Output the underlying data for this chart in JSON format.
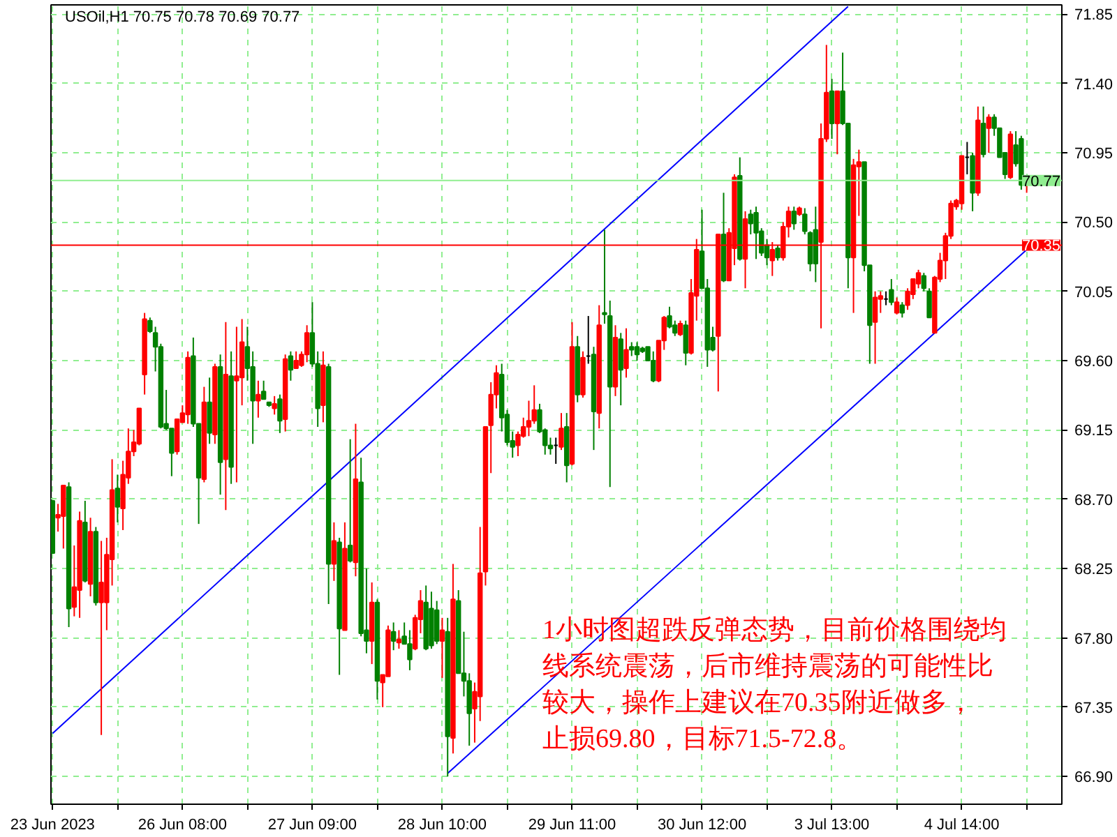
{
  "chart_data": {
    "type": "candlestick",
    "title": "USOil,H1 70.75 70.78 70.69 70.77",
    "categories": [
      "23 Jun 2023",
      null,
      null,
      null,
      null,
      null,
      null,
      null,
      null,
      null,
      null,
      null,
      null,
      null,
      null,
      null,
      null,
      null,
      null,
      null,
      null,
      null,
      null,
      null,
      "26 Jun 08:00",
      null,
      null,
      null,
      null,
      null,
      null,
      null,
      null,
      null,
      null,
      null,
      null,
      null,
      null,
      null,
      null,
      null,
      null,
      null,
      null,
      null,
      null,
      null,
      "27 Jun 09:00",
      null,
      null,
      null,
      null,
      null,
      null,
      null,
      null,
      null,
      null,
      null,
      null,
      null,
      null,
      null,
      null,
      null,
      null,
      null,
      null,
      null,
      null,
      null,
      "28 Jun 10:00",
      null,
      null,
      null,
      null,
      null,
      null,
      null,
      null,
      null,
      null,
      null,
      null,
      null,
      null,
      null,
      null,
      null,
      null,
      null,
      null,
      null,
      null,
      null,
      "29 Jun 11:00",
      null,
      null,
      null,
      null,
      null,
      null,
      null,
      null,
      null,
      null,
      null,
      null,
      null,
      null,
      null,
      null,
      null,
      null,
      null,
      null,
      null,
      null,
      null,
      "30 Jun 12:00",
      null,
      null,
      null,
      null,
      null,
      null,
      null,
      null,
      null,
      null,
      null,
      null,
      null,
      null,
      null,
      null,
      null,
      null,
      null,
      null,
      null,
      null,
      null,
      "3 Jul 13:00",
      null,
      null,
      null,
      null,
      null,
      null,
      null,
      null,
      null,
      null,
      null,
      null,
      null,
      null,
      null,
      null,
      null,
      null,
      null,
      null,
      null,
      null,
      null,
      "4 Jul 14:00",
      null,
      null,
      null,
      null,
      null,
      null,
      null,
      null,
      null,
      null,
      null,
      null
    ],
    "ohlc": [
      [
        68.69,
        68.69,
        68.35,
        68.35
      ],
      [
        68.58,
        68.67,
        68.49,
        68.6
      ],
      [
        68.59,
        68.79,
        68.38,
        68.79
      ],
      [
        68.78,
        68.81,
        67.87,
        67.99
      ],
      [
        68.0,
        68.4,
        67.94,
        68.13
      ],
      [
        68.11,
        68.62,
        67.93,
        68.56
      ],
      [
        68.55,
        68.69,
        68.16,
        68.17
      ],
      [
        68.15,
        68.58,
        68.07,
        68.49
      ],
      [
        68.49,
        68.52,
        68.01,
        68.03
      ],
      [
        68.03,
        68.43,
        67.17,
        68.16
      ],
      [
        68.03,
        68.45,
        67.85,
        68.34
      ],
      [
        68.31,
        68.96,
        68.14,
        68.76
      ],
      [
        68.77,
        68.86,
        68.55,
        68.65
      ],
      [
        68.64,
        68.95,
        68.5,
        68.86
      ],
      [
        68.84,
        69.16,
        68.8,
        69.01
      ],
      [
        69.01,
        69.15,
        68.98,
        69.07
      ],
      [
        69.06,
        69.29,
        69.05,
        69.29
      ],
      [
        69.51,
        69.91,
        69.38,
        69.87
      ],
      [
        69.86,
        69.88,
        69.78,
        69.79
      ],
      [
        69.78,
        69.82,
        69.53,
        69.69
      ],
      [
        69.69,
        69.71,
        69.16,
        69.17
      ],
      [
        69.19,
        69.41,
        69.15,
        69.16
      ],
      [
        69.16,
        69.16,
        68.85,
        69.0
      ],
      [
        69.01,
        69.22,
        68.99,
        69.22
      ],
      [
        69.2,
        69.31,
        69.2,
        69.26
      ],
      [
        69.25,
        69.66,
        69.19,
        69.62
      ],
      [
        69.63,
        69.75,
        69.17,
        69.19
      ],
      [
        69.19,
        69.19,
        68.54,
        68.84
      ],
      [
        68.83,
        69.43,
        68.81,
        69.33
      ],
      [
        69.33,
        69.49,
        69.06,
        69.13
      ],
      [
        69.12,
        69.58,
        69.06,
        69.56
      ],
      [
        69.56,
        69.64,
        68.73,
        68.94
      ],
      [
        68.96,
        69.85,
        68.63,
        69.51
      ],
      [
        69.5,
        69.66,
        68.8,
        68.91
      ],
      [
        69.47,
        69.82,
        68.81,
        69.5
      ],
      [
        69.49,
        69.87,
        69.31,
        69.72
      ],
      [
        69.69,
        69.82,
        69.47,
        69.55
      ],
      [
        69.56,
        69.66,
        69.06,
        69.34
      ],
      [
        69.34,
        69.47,
        69.23,
        69.38
      ],
      [
        69.4,
        69.47,
        69.35,
        69.35
      ],
      [
        69.33,
        69.33,
        69.3,
        69.31
      ],
      [
        69.29,
        69.37,
        69.25,
        69.32
      ],
      [
        69.35,
        69.38,
        69.13,
        69.21
      ],
      [
        69.22,
        69.64,
        69.14,
        69.61
      ],
      [
        69.63,
        69.66,
        69.47,
        69.54
      ],
      [
        69.55,
        69.66,
        69.55,
        69.6
      ],
      [
        69.57,
        69.66,
        69.56,
        69.64
      ],
      [
        69.64,
        69.83,
        69.59,
        69.78
      ],
      [
        69.78,
        69.98,
        69.56,
        69.58
      ],
      [
        69.58,
        69.66,
        69.17,
        69.29
      ],
      [
        69.31,
        69.66,
        69.2,
        69.57
      ],
      [
        69.56,
        69.58,
        68.02,
        68.28
      ],
      [
        68.28,
        68.55,
        68.17,
        68.43
      ],
      [
        68.42,
        68.45,
        67.56,
        67.86
      ],
      [
        67.85,
        68.55,
        67.85,
        68.38
      ],
      [
        68.4,
        69.09,
        68.29,
        68.3
      ],
      [
        68.29,
        69.19,
        68.2,
        68.83
      ],
      [
        68.81,
        68.97,
        67.81,
        67.83
      ],
      [
        67.85,
        68.25,
        67.7,
        67.78
      ],
      [
        67.78,
        68.16,
        67.63,
        68.03
      ],
      [
        68.03,
        68.05,
        67.4,
        67.52
      ],
      [
        67.51,
        67.56,
        67.35,
        67.56
      ],
      [
        67.55,
        67.88,
        67.55,
        67.85
      ],
      [
        67.84,
        67.9,
        67.72,
        67.78
      ],
      [
        67.77,
        67.85,
        67.73,
        67.79
      ],
      [
        67.81,
        67.9,
        67.76,
        67.76
      ],
      [
        67.76,
        67.85,
        67.59,
        67.66
      ],
      [
        67.73,
        67.95,
        67.72,
        67.93
      ],
      [
        67.92,
        68.11,
        67.83,
        68.04
      ],
      [
        68.03,
        68.14,
        67.72,
        67.73
      ],
      [
        67.99,
        68.1,
        67.73,
        67.75
      ],
      [
        67.98,
        68.04,
        67.76,
        67.78
      ],
      [
        67.78,
        67.93,
        67.54,
        67.85
      ],
      [
        67.84,
        67.93,
        66.9,
        67.16
      ],
      [
        67.15,
        68.28,
        67.05,
        68.05
      ],
      [
        68.04,
        68.11,
        67.57,
        67.57
      ],
      [
        67.57,
        67.84,
        67.42,
        67.52
      ],
      [
        67.52,
        67.57,
        67.1,
        67.31
      ],
      [
        67.34,
        67.51,
        67.12,
        67.45
      ],
      [
        67.42,
        68.52,
        67.26,
        68.22
      ],
      [
        68.23,
        69.17,
        68.14,
        69.17
      ],
      [
        69.18,
        69.46,
        68.87,
        69.38
      ],
      [
        69.38,
        69.57,
        69.29,
        69.52
      ],
      [
        69.51,
        69.58,
        69.14,
        69.23
      ],
      [
        69.25,
        69.28,
        69.05,
        69.07
      ],
      [
        69.08,
        69.14,
        68.97,
        69.04
      ],
      [
        69.05,
        69.14,
        68.98,
        69.12
      ],
      [
        69.11,
        69.23,
        69.1,
        69.17
      ],
      [
        69.17,
        69.34,
        69.11,
        69.21
      ],
      [
        69.21,
        69.44,
        69.19,
        69.28
      ],
      [
        69.28,
        69.32,
        69.13,
        69.14
      ],
      [
        69.15,
        69.16,
        68.99,
        69.05
      ],
      [
        69.05,
        69.1,
        68.99,
        69.03
      ],
      [
        69.05,
        69.1,
        68.93,
        69.05
      ],
      [
        69.04,
        69.26,
        69.02,
        69.16
      ],
      [
        69.17,
        69.26,
        68.81,
        68.92
      ],
      [
        68.93,
        69.85,
        68.92,
        69.69
      ],
      [
        69.69,
        69.76,
        69.33,
        69.38
      ],
      [
        69.38,
        69.66,
        69.36,
        69.62
      ],
      [
        69.63,
        69.89,
        69.58,
        69.63
      ],
      [
        69.64,
        69.69,
        69.02,
        69.27
      ],
      [
        69.26,
        69.96,
        69.16,
        69.83
      ],
      [
        69.91,
        70.45,
        69.84,
        69.9
      ],
      [
        69.89,
        69.99,
        68.78,
        69.43
      ],
      [
        69.43,
        69.83,
        69.37,
        69.75
      ],
      [
        69.74,
        69.78,
        69.31,
        69.54
      ],
      [
        69.55,
        69.81,
        69.49,
        69.67
      ],
      [
        69.69,
        69.72,
        69.63,
        69.67
      ],
      [
        69.69,
        69.72,
        69.6,
        69.64
      ],
      [
        69.68,
        69.69,
        69.65,
        69.66
      ],
      [
        69.69,
        69.69,
        69.6,
        69.6
      ],
      [
        69.6,
        69.66,
        69.46,
        69.47
      ],
      [
        69.47,
        69.73,
        69.46,
        69.73
      ],
      [
        69.73,
        69.89,
        69.67,
        69.88
      ],
      [
        69.89,
        69.95,
        69.81,
        69.82
      ],
      [
        69.83,
        69.86,
        69.76,
        69.78
      ],
      [
        69.77,
        69.86,
        69.76,
        69.84
      ],
      [
        69.83,
        69.86,
        69.57,
        69.65
      ],
      [
        69.65,
        70.13,
        69.64,
        70.04
      ],
      [
        70.02,
        70.39,
        69.86,
        70.32
      ],
      [
        70.31,
        70.58,
        70.07,
        70.07
      ],
      [
        70.07,
        70.13,
        69.56,
        69.67
      ],
      [
        69.75,
        69.82,
        69.66,
        69.67
      ],
      [
        69.76,
        70.42,
        69.4,
        70.42
      ],
      [
        70.42,
        70.69,
        70.11,
        70.12
      ],
      [
        70.12,
        70.46,
        70.12,
        70.43
      ],
      [
        70.33,
        70.81,
        70.22,
        70.79
      ],
      [
        70.8,
        70.92,
        70.25,
        70.26
      ],
      [
        70.26,
        70.57,
        70.07,
        70.52
      ],
      [
        70.55,
        70.58,
        70.42,
        70.49
      ],
      [
        70.56,
        70.6,
        70.26,
        70.43
      ],
      [
        70.44,
        70.46,
        70.28,
        70.3
      ],
      [
        70.35,
        70.39,
        70.22,
        70.27
      ],
      [
        70.25,
        70.37,
        70.15,
        70.32
      ],
      [
        70.33,
        70.35,
        70.25,
        70.27
      ],
      [
        70.27,
        70.5,
        70.25,
        70.47
      ],
      [
        70.47,
        70.6,
        70.4,
        70.57
      ],
      [
        70.57,
        70.6,
        70.45,
        70.49
      ],
      [
        70.55,
        70.6,
        70.54,
        70.59
      ],
      [
        70.55,
        70.59,
        70.42,
        70.44
      ],
      [
        70.43,
        70.44,
        70.18,
        70.23
      ],
      [
        70.45,
        70.6,
        70.11,
        70.23
      ],
      [
        70.37,
        71.14,
        69.81,
        71.04
      ],
      [
        71.04,
        71.65,
        71.02,
        71.34
      ],
      [
        71.35,
        71.43,
        71.04,
        71.14
      ],
      [
        71.14,
        71.35,
        70.94,
        71.35
      ],
      [
        71.35,
        71.6,
        71.13,
        71.14
      ],
      [
        71.14,
        71.14,
        70.07,
        70.27
      ],
      [
        70.27,
        70.91,
        69.91,
        70.87
      ],
      [
        70.86,
        70.97,
        70.54,
        70.89
      ],
      [
        70.89,
        70.89,
        70.18,
        70.22
      ],
      [
        70.22,
        70.22,
        69.58,
        69.83
      ],
      [
        69.85,
        70.05,
        69.58,
        70.01
      ],
      [
        70.0,
        70.05,
        69.91,
        70.02
      ],
      [
        70.0,
        70.05,
        69.96,
        70.0
      ],
      [
        70.06,
        70.13,
        69.96,
        69.98
      ],
      [
        69.91,
        70.01,
        69.9,
        69.98
      ],
      [
        69.96,
        69.98,
        69.88,
        69.91
      ],
      [
        69.96,
        70.07,
        69.93,
        70.05
      ],
      [
        70.03,
        70.13,
        70.0,
        70.13
      ],
      [
        70.1,
        70.19,
        70.07,
        70.17
      ],
      [
        70.15,
        70.17,
        70.05,
        70.07
      ],
      [
        70.05,
        70.07,
        69.88,
        69.88
      ],
      [
        69.78,
        70.15,
        69.78,
        70.14
      ],
      [
        70.13,
        70.3,
        70.11,
        70.25
      ],
      [
        70.25,
        70.43,
        70.13,
        70.41
      ],
      [
        70.41,
        70.64,
        70.39,
        70.62
      ],
      [
        70.6,
        70.65,
        70.58,
        70.64
      ],
      [
        70.62,
        70.93,
        70.58,
        70.93
      ],
      [
        70.92,
        71.02,
        70.81,
        70.92
      ],
      [
        70.93,
        70.95,
        70.57,
        70.69
      ],
      [
        70.69,
        71.25,
        70.67,
        71.16
      ],
      [
        71.14,
        71.25,
        70.92,
        70.94
      ],
      [
        71.11,
        71.2,
        70.95,
        71.18
      ],
      [
        71.18,
        71.2,
        71.06,
        71.11
      ],
      [
        71.11,
        71.11,
        70.92,
        70.92
      ],
      [
        70.95,
        70.95,
        70.78,
        70.81
      ],
      [
        70.79,
        71.09,
        70.78,
        71.07
      ],
      [
        71.0,
        71.09,
        70.86,
        70.88
      ],
      [
        71.04,
        71.06,
        70.71,
        70.74
      ],
      [
        70.75,
        70.78,
        70.69,
        70.77
      ]
    ],
    "colors": [
      "#008000",
      "#ff0000",
      "#ff0000",
      "#008000",
      "#ff0000",
      "#ff0000",
      "#008000",
      "#ff0000",
      "#008000",
      "#ff0000",
      "#ff0000",
      "#ff0000",
      "#008000",
      "#ff0000",
      "#ff0000",
      "#ff0000",
      "#ff0000",
      "#ff0000",
      "#008000",
      "#008000",
      "#008000",
      "#008000",
      "#008000",
      "#ff0000",
      "#ff0000",
      "#ff0000",
      "#008000",
      "#008000",
      "#ff0000",
      "#008000",
      "#ff0000",
      "#008000",
      "#ff0000",
      "#008000",
      "#ff0000",
      "#ff0000",
      "#008000",
      "#008000",
      "#ff0000",
      "#008000",
      "#008000",
      "#ff0000",
      "#008000",
      "#ff0000",
      "#008000",
      "#ff0000",
      "#ff0000",
      "#ff0000",
      "#008000",
      "#008000",
      "#ff0000",
      "#008000",
      "#ff0000",
      "#008000",
      "#ff0000",
      "#008000",
      "#ff0000",
      "#008000",
      "#008000",
      "#ff0000",
      "#008000",
      "#ff0000",
      "#ff0000",
      "#008000",
      "#ff0000",
      "#008000",
      "#008000",
      "#ff0000",
      "#ff0000",
      "#008000",
      "#008000",
      "#008000",
      "#ff0000",
      "#008000",
      "#ff0000",
      "#008000",
      "#008000",
      "#008000",
      "#ff0000",
      "#ff0000",
      "#ff0000",
      "#ff0000",
      "#ff0000",
      "#008000",
      "#008000",
      "#008000",
      "#ff0000",
      "#ff0000",
      "#ff0000",
      "#ff0000",
      "#008000",
      "#008000",
      "#008000",
      "#000000",
      "#ff0000",
      "#008000",
      "#ff0000",
      "#008000",
      "#ff0000",
      "#000000",
      "#008000",
      "#ff0000",
      "#008000",
      "#008000",
      "#ff0000",
      "#008000",
      "#ff0000",
      "#008000",
      "#008000",
      "#008000",
      "#008000",
      "#008000",
      "#ff0000",
      "#ff0000",
      "#008000",
      "#008000",
      "#ff0000",
      "#008000",
      "#ff0000",
      "#ff0000",
      "#008000",
      "#008000",
      "#008000",
      "#ff0000",
      "#008000",
      "#ff0000",
      "#ff0000",
      "#008000",
      "#ff0000",
      "#008000",
      "#008000",
      "#008000",
      "#008000",
      "#ff0000",
      "#008000",
      "#ff0000",
      "#ff0000",
      "#008000",
      "#ff0000",
      "#008000",
      "#008000",
      "#008000",
      "#ff0000",
      "#ff0000",
      "#008000",
      "#ff0000",
      "#008000",
      "#008000",
      "#ff0000",
      "#ff0000",
      "#008000",
      "#008000",
      "#ff0000",
      "#ff0000",
      "#000000",
      "#008000",
      "#ff0000",
      "#008000",
      "#ff0000",
      "#ff0000",
      "#ff0000",
      "#008000",
      "#008000",
      "#ff0000",
      "#ff0000",
      "#ff0000",
      "#ff0000",
      "#ff0000",
      "#ff0000",
      "#000000",
      "#008000",
      "#ff0000",
      "#008000",
      "#ff0000",
      "#008000",
      "#008000",
      "#008000",
      "#ff0000",
      "#008000",
      "#008000",
      "#ff0000"
    ],
    "series": [
      {
        "type": "line",
        "color": "#0000ff",
        "values": [
          67.18,
          null,
          null,
          null,
          null,
          null,
          null,
          null,
          null,
          null,
          null,
          null,
          null,
          null,
          null,
          null,
          null,
          null,
          null,
          null,
          null,
          null,
          null,
          null,
          null,
          null,
          null,
          null,
          null,
          null,
          null,
          null,
          null,
          null,
          null,
          null,
          null,
          null,
          null,
          null,
          null,
          null,
          null,
          null,
          null,
          null,
          null,
          null,
          null,
          null,
          null,
          null,
          null,
          null,
          null,
          null,
          null,
          null,
          null,
          null,
          null,
          null,
          null,
          null,
          null,
          null,
          null,
          null,
          null,
          null,
          null,
          null,
          null,
          null,
          null,
          null,
          null,
          null,
          null,
          null,
          null,
          null,
          null,
          null,
          null,
          null,
          null,
          null,
          null,
          null,
          null,
          null,
          null,
          null,
          null,
          null,
          null,
          null,
          null,
          null,
          null,
          null,
          null,
          null,
          null,
          null,
          null,
          null,
          null,
          null,
          null,
          null,
          null,
          null,
          null,
          null,
          null,
          null,
          null,
          null,
          null,
          null,
          null,
          null,
          null,
          null,
          null,
          null,
          null,
          null,
          null,
          null,
          null,
          null,
          null,
          null,
          null,
          null,
          null,
          null,
          null,
          null,
          null,
          null,
          null,
          null,
          null,
          71.9,
          null,
          null,
          null,
          null,
          null,
          null,
          null,
          null,
          null,
          null,
          null,
          null,
          null,
          null,
          null,
          null,
          null,
          null,
          null,
          null,
          null,
          null,
          null,
          null,
          null,
          null,
          null,
          null,
          null,
          null,
          null,
          null,
          null
        ]
      },
      {
        "type": "line",
        "color": "#0000ff",
        "values": [
          null,
          null,
          null,
          null,
          null,
          null,
          null,
          null,
          null,
          null,
          null,
          null,
          null,
          null,
          null,
          null,
          null,
          null,
          null,
          null,
          null,
          null,
          null,
          null,
          null,
          null,
          null,
          null,
          null,
          null,
          null,
          null,
          null,
          null,
          null,
          null,
          null,
          null,
          null,
          null,
          null,
          null,
          null,
          null,
          null,
          null,
          null,
          null,
          null,
          null,
          null,
          null,
          null,
          null,
          null,
          null,
          null,
          null,
          null,
          null,
          null,
          null,
          null,
          null,
          null,
          null,
          null,
          null,
          null,
          null,
          null,
          null,
          null,
          66.92,
          null,
          null,
          null,
          null,
          null,
          null,
          null,
          null,
          null,
          null,
          null,
          null,
          null,
          null,
          null,
          null,
          null,
          null,
          null,
          null,
          null,
          null,
          null,
          null,
          null,
          null,
          null,
          null,
          null,
          null,
          null,
          null,
          null,
          null,
          null,
          null,
          null,
          null,
          null,
          null,
          null,
          null,
          null,
          null,
          null,
          null,
          null,
          null,
          null,
          null,
          null,
          null,
          null,
          null,
          null,
          null,
          null,
          null,
          null,
          null,
          null,
          null,
          null,
          null,
          null,
          null,
          null,
          null,
          null,
          null,
          null,
          null,
          null,
          null,
          null,
          null,
          null,
          null,
          null,
          null,
          null,
          null,
          null,
          null,
          null,
          null,
          null,
          null,
          null,
          null,
          null,
          null,
          null,
          null,
          null,
          null,
          null,
          null,
          null,
          null,
          null,
          null,
          null,
          null,
          null,
          null,
          70.32
        ]
      }
    ],
    "ylim": [
      66.72,
      71.91
    ],
    "yticks": [
      {
        "value": 66.9,
        "label": "66.90"
      },
      67.35,
      {
        "value": 67.8,
        "label": "67.80"
      },
      68.25,
      {
        "value": 68.7,
        "label": "68.70"
      },
      69.15,
      {
        "value": 69.6,
        "label": "69.60"
      },
      70.05,
      {
        "value": 70.5,
        "label": "70.50"
      },
      70.95,
      {
        "value": 71.4,
        "label": "71.40"
      },
      71.85
    ],
    "grid": true,
    "ref_lines": [
      {
        "axis": "y",
        "value": 70.77,
        "label": "70.77",
        "color": "#90ee90"
      },
      {
        "axis": "y",
        "value": 70.35,
        "label": "70.35",
        "color": "#ff0000"
      }
    ],
    "annotations": [
      "1小时图超跌反弹态势，目前价格围绕均",
      "线系统震荡，后市维持震荡的可能性比",
      "较大，操作上建议在70.35附近做多，",
      "止损69.80，目标71.5-72.8。"
    ]
  }
}
